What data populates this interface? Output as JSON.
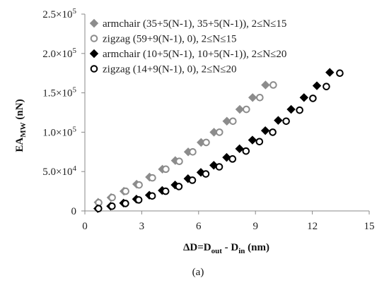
{
  "chart_data": {
    "type": "scatter",
    "title": "",
    "xlabel": {
      "main": "ΔD=D",
      "sub1": "out",
      "mid": " - D",
      "sub2": "in",
      "tail": " (nm)"
    },
    "ylabel": {
      "main": "EA",
      "sub": "MW",
      "tail": " (nN)"
    },
    "caption": "(a)",
    "xlim": [
      0,
      15
    ],
    "ylim": [
      0,
      250000
    ],
    "xticks": [
      0,
      3,
      6,
      9,
      12,
      15
    ],
    "xtick_labels": [
      "0",
      "3",
      "6",
      "9",
      "12",
      "15"
    ],
    "yticks": [
      0,
      50000,
      100000,
      150000,
      200000,
      250000
    ],
    "ytick_labels": [
      {
        "m": "0",
        "e": ""
      },
      {
        "m": "5.0×10",
        "e": "4"
      },
      {
        "m": "1.0×10",
        "e": "5"
      },
      {
        "m": "1.5×10",
        "e": "5"
      },
      {
        "m": "2.0×10",
        "e": "5"
      },
      {
        "m": "2.5×10",
        "e": "5"
      }
    ],
    "legend_position": "top-left",
    "series": [
      {
        "name": "armchair (35+5(N-1), 35+5(N-1)), 2≤N≤15",
        "marker": "diamond",
        "filled": true,
        "color": "#8c8c8c",
        "x": [
          0.7,
          1.38,
          2.06,
          2.73,
          3.41,
          4.09,
          4.77,
          5.45,
          6.13,
          6.81,
          7.49,
          8.17,
          8.85,
          9.53
        ],
        "y": [
          11000,
          17000,
          25000,
          34000,
          43000,
          53000,
          64000,
          75000,
          87000,
          100000,
          114000,
          129000,
          144000,
          160000
        ]
      },
      {
        "name": "zigzag (59+9(N-1), 0), 2≤N≤15",
        "marker": "circle",
        "filled": false,
        "color": "#8c8c8c",
        "x": [
          0.73,
          1.44,
          2.15,
          2.86,
          3.56,
          4.27,
          4.98,
          5.69,
          6.4,
          7.1,
          7.81,
          8.52,
          9.23,
          9.94
        ],
        "y": [
          10500,
          17000,
          25000,
          33000,
          42000,
          53000,
          63000,
          75000,
          87000,
          100000,
          114000,
          129000,
          144000,
          160000
        ]
      },
      {
        "name": "armchair (10+5(N-1), 10+5(N-1)), 2≤N≤20",
        "marker": "diamond",
        "filled": true,
        "color": "#000000",
        "x": [
          0.68,
          1.36,
          2.04,
          2.72,
          3.4,
          4.08,
          4.76,
          5.44,
          6.12,
          6.8,
          7.48,
          8.16,
          8.84,
          9.52,
          10.2,
          10.88,
          11.56,
          12.24,
          12.92
        ],
        "y": [
          3000,
          6000,
          10000,
          15000,
          20000,
          26000,
          33000,
          41000,
          49000,
          58000,
          68000,
          79000,
          90000,
          102000,
          115000,
          129000,
          144000,
          159000,
          176000
        ]
      },
      {
        "name": "zigzag (14+9(N-1), 0), 2≤N≤20",
        "marker": "circle",
        "filled": false,
        "color": "#000000",
        "x": [
          0.72,
          1.43,
          2.14,
          2.84,
          3.55,
          4.26,
          4.96,
          5.67,
          6.38,
          7.09,
          7.79,
          8.5,
          9.21,
          9.91,
          10.62,
          11.33,
          12.03,
          12.74,
          13.45
        ],
        "y": [
          3000,
          6000,
          9500,
          14000,
          19000,
          25000,
          31000,
          39000,
          47000,
          56000,
          66000,
          76000,
          88000,
          100000,
          114000,
          128000,
          143000,
          158000,
          175000
        ]
      }
    ]
  }
}
